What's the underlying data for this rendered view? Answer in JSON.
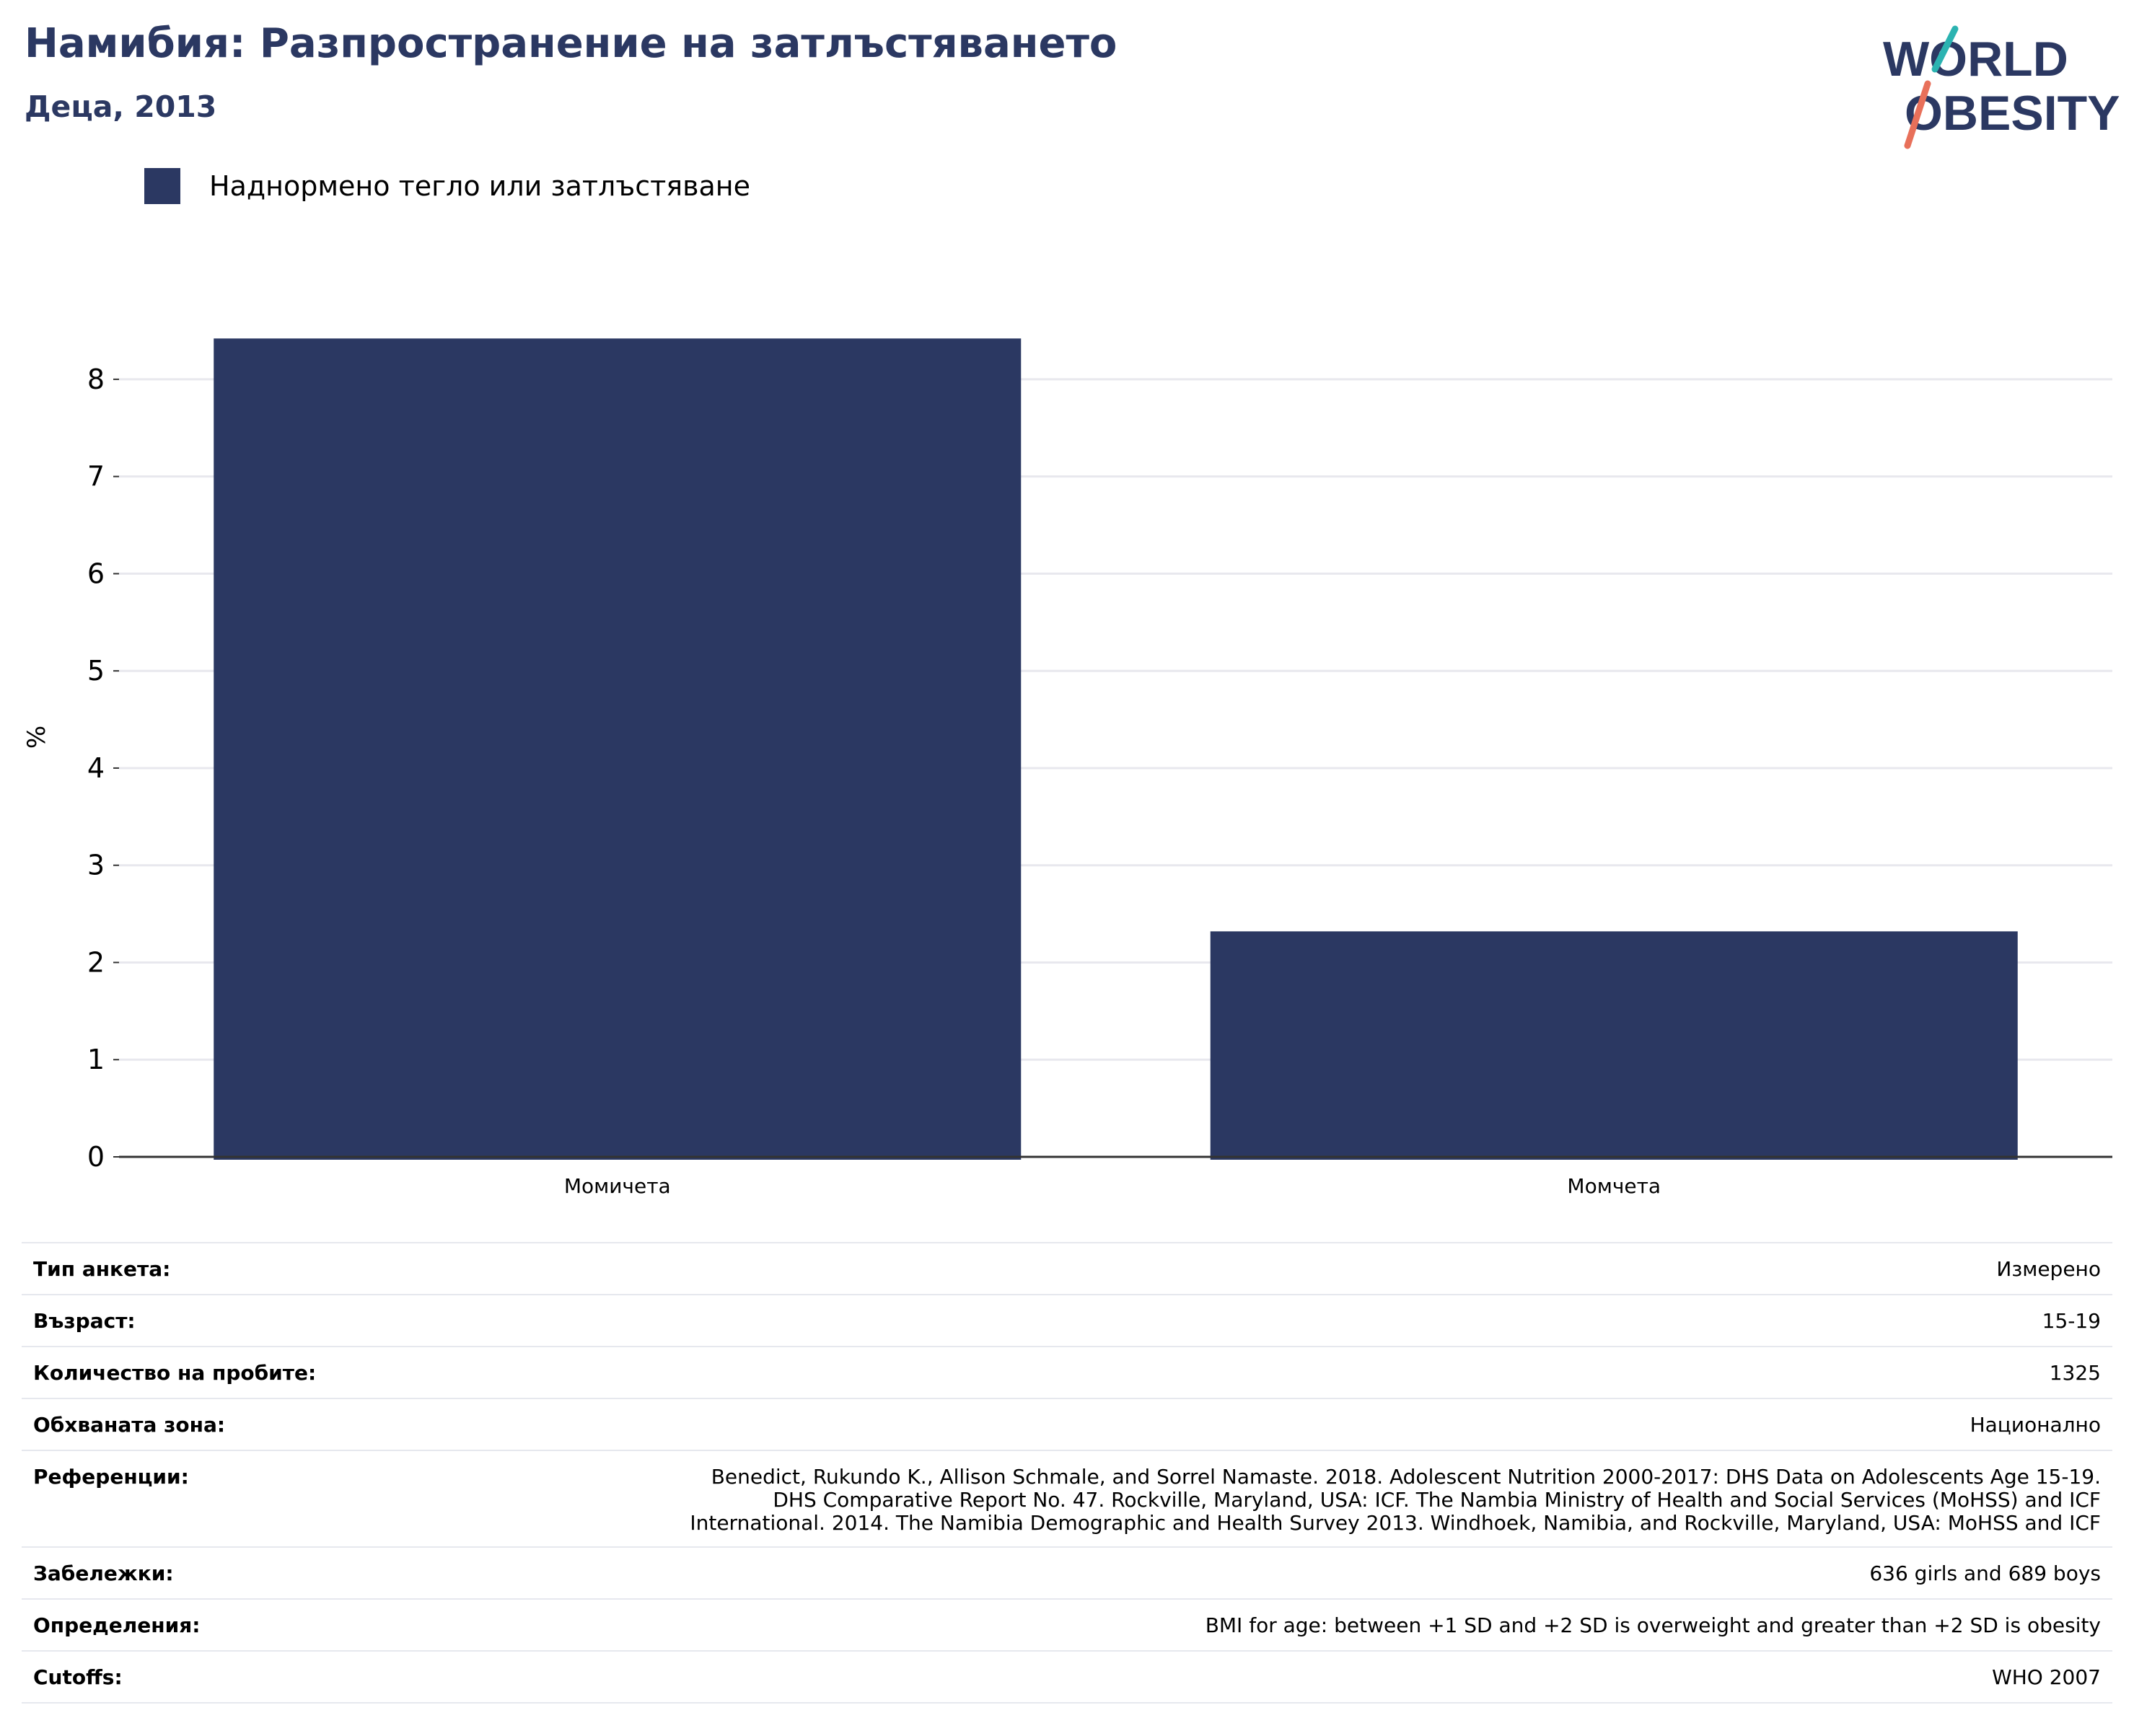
{
  "header": {
    "title": "Намибия: Разпространение на затлъстяването",
    "subtitle": "Деца, 2013"
  },
  "logo": {
    "line1": "WORLD",
    "line2": "OBESITY",
    "accent_teal": "#2bb3b1",
    "accent_red": "#e8705a"
  },
  "legend": {
    "label": "Наднормено тегло или затлъстяване",
    "color": "#2b3862"
  },
  "chart_data": {
    "type": "bar",
    "categories": [
      "Момичета",
      "Момчета"
    ],
    "series": [
      {
        "name": "Наднормено тегло или затлъстяване",
        "values": [
          8.42,
          2.32
        ],
        "color": "#2b3862"
      }
    ],
    "ylabel": "%",
    "ylim": [
      0,
      8.4
    ],
    "yticks": [
      0,
      1,
      2,
      3,
      4,
      5,
      6,
      7,
      8
    ],
    "grid": true
  },
  "info": {
    "rows": [
      {
        "key": "Тип анкета:",
        "value": "Измерено"
      },
      {
        "key": "Възраст:",
        "value": "15-19"
      },
      {
        "key": "Количество на пробите:",
        "value": "1325"
      },
      {
        "key": "Обхваната зона:",
        "value": "Национално"
      },
      {
        "key": "Референции:",
        "lines": [
          "Benedict, Rukundo K., Allison Schmale, and Sorrel Namaste. 2018. Adolescent Nutrition 2000-2017: DHS Data on Adolescents Age 15-19.",
          "DHS Comparative Report No. 47. Rockville, Maryland, USA: ICF. The Nambia Ministry of Health and Social Services (MoHSS) and ICF",
          "International. 2014. The Namibia Demographic and Health Survey 2013. Windhoek, Namibia, and Rockville, Maryland, USA: MoHSS and ICF"
        ]
      },
      {
        "key": "Забележки:",
        "value": "636 girls and 689 boys"
      },
      {
        "key": "Определения:",
        "value": "BMI for age: between +1 SD and +2 SD is overweight and greater than +2 SD is obesity"
      },
      {
        "key": "Cutoffs:",
        "value": "WHO 2007"
      }
    ]
  }
}
